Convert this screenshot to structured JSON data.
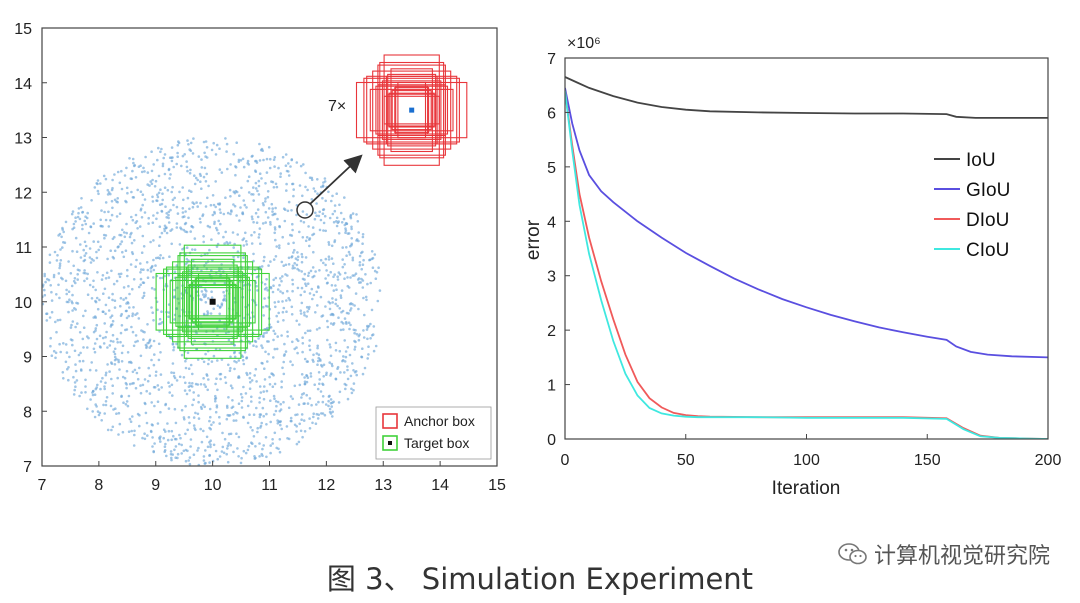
{
  "caption": "图 3、 Simulation Experiment",
  "watermark": "计算机视觉研究院",
  "colors": {
    "anchor": "#e8363b",
    "target": "#41d23b",
    "scatter": "#6fa8d8",
    "IoU": "#444444",
    "GIoU": "#5a4fe0",
    "DIoU": "#f05a5a",
    "CIoU": "#3fe8e0"
  },
  "chart_data": [
    {
      "type": "scatter",
      "xlim": [
        7,
        15
      ],
      "ylim": [
        7,
        15
      ],
      "x_ticks": [
        "7",
        "8",
        "9",
        "10",
        "11",
        "12",
        "13",
        "14",
        "15"
      ],
      "y_ticks": [
        "7",
        "8",
        "9",
        "10",
        "11",
        "12",
        "13",
        "14",
        "15"
      ],
      "scatter_region": {
        "center": [
          10,
          10
        ],
        "radius": 3
      },
      "target_box_center": [
        10,
        10
      ],
      "anchor_inset_center": [
        13.5,
        13.5
      ],
      "inset_label": "7×",
      "legend": [
        "Anchor box",
        "Target box"
      ],
      "legend_position": "bottom-right"
    },
    {
      "type": "line",
      "xlabel": "Iteration",
      "ylabel": "error",
      "xlim": [
        0,
        200
      ],
      "ylim": [
        0,
        7
      ],
      "x_ticks": [
        "0",
        "50",
        "100",
        "150",
        "200"
      ],
      "y_ticks": [
        "0",
        "1",
        "2",
        "3",
        "4",
        "5",
        "6",
        "7"
      ],
      "y_exponent": "×10⁶",
      "legend_position": "right",
      "series": [
        {
          "name": "IoU",
          "x": [
            0,
            5,
            10,
            20,
            30,
            40,
            50,
            60,
            80,
            100,
            120,
            140,
            158,
            162,
            170,
            185,
            200
          ],
          "y": [
            6.65,
            6.55,
            6.45,
            6.3,
            6.18,
            6.1,
            6.05,
            6.02,
            6.0,
            5.99,
            5.98,
            5.98,
            5.97,
            5.92,
            5.9,
            5.9,
            5.9
          ]
        },
        {
          "name": "GIoU",
          "x": [
            0,
            3,
            6,
            10,
            15,
            20,
            30,
            40,
            50,
            60,
            70,
            80,
            90,
            100,
            110,
            120,
            130,
            140,
            150,
            158,
            162,
            168,
            175,
            185,
            200
          ],
          "y": [
            6.45,
            5.8,
            5.3,
            4.85,
            4.55,
            4.35,
            4.0,
            3.7,
            3.42,
            3.18,
            2.95,
            2.75,
            2.57,
            2.42,
            2.28,
            2.16,
            2.05,
            1.96,
            1.88,
            1.82,
            1.7,
            1.6,
            1.55,
            1.52,
            1.5
          ]
        },
        {
          "name": "DIoU",
          "x": [
            0,
            3,
            6,
            10,
            15,
            20,
            25,
            30,
            35,
            40,
            45,
            50,
            55,
            60,
            80,
            100,
            120,
            140,
            158,
            165,
            172,
            180,
            190,
            200
          ],
          "y": [
            6.4,
            5.4,
            4.5,
            3.7,
            2.9,
            2.2,
            1.55,
            1.05,
            0.75,
            0.58,
            0.48,
            0.44,
            0.42,
            0.41,
            0.4,
            0.4,
            0.4,
            0.4,
            0.38,
            0.2,
            0.06,
            0.02,
            0.01,
            0.0
          ]
        },
        {
          "name": "CIoU",
          "x": [
            0,
            3,
            6,
            10,
            15,
            20,
            25,
            30,
            35,
            40,
            45,
            50,
            55,
            60,
            80,
            100,
            120,
            140,
            158,
            165,
            172,
            180,
            190,
            200
          ],
          "y": [
            6.4,
            5.3,
            4.3,
            3.4,
            2.55,
            1.8,
            1.2,
            0.8,
            0.57,
            0.47,
            0.43,
            0.41,
            0.4,
            0.4,
            0.4,
            0.39,
            0.39,
            0.39,
            0.37,
            0.18,
            0.05,
            0.02,
            0.01,
            0.0
          ]
        }
      ]
    }
  ]
}
